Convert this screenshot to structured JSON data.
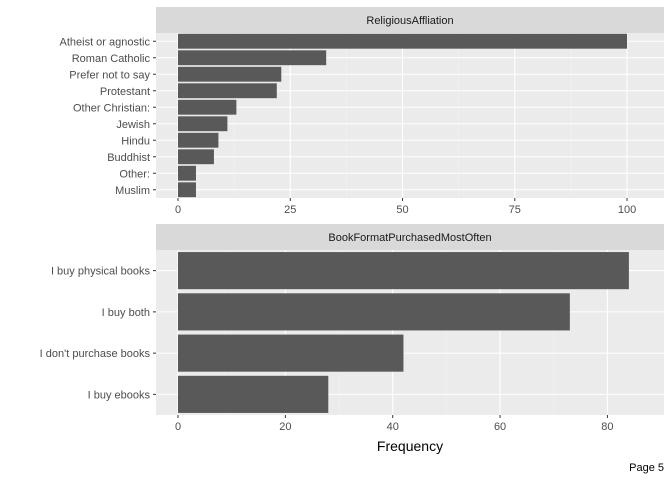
{
  "page": {
    "label": "Page 5"
  },
  "chart_data": [
    {
      "type": "bar",
      "orientation": "horizontal",
      "title": "ReligiousAffliation",
      "categories": [
        "Atheist or agnostic",
        "Roman Catholic",
        "Prefer not to say",
        "Protestant",
        "Other Christian:",
        "Jewish",
        "Hindu",
        "Buddhist",
        "Other:",
        "Muslim"
      ],
      "values": [
        100,
        33,
        23,
        22,
        13,
        11,
        9,
        8,
        4,
        4
      ],
      "xlim": [
        0,
        104
      ],
      "xticks": [
        0,
        25,
        50,
        75,
        100
      ],
      "xlabel": "",
      "ylabel": "",
      "grid": true
    },
    {
      "type": "bar",
      "orientation": "horizontal",
      "title": "BookFormatPurchasedMostOften",
      "categories": [
        "I buy physical books",
        "I buy both",
        "I don't purchase books",
        "I buy ebooks"
      ],
      "values": [
        84,
        73,
        42,
        28
      ],
      "xlim": [
        0,
        87
      ],
      "xticks": [
        0,
        20,
        40,
        60,
        80
      ],
      "xlabel": "Frequency",
      "ylabel": "",
      "grid": true
    }
  ],
  "colors": {
    "bar": "#595959",
    "panel": "#ebebeb",
    "strip": "#d9d9d9",
    "grid_major": "#ffffff",
    "grid_minor": "#f2f2f2"
  }
}
